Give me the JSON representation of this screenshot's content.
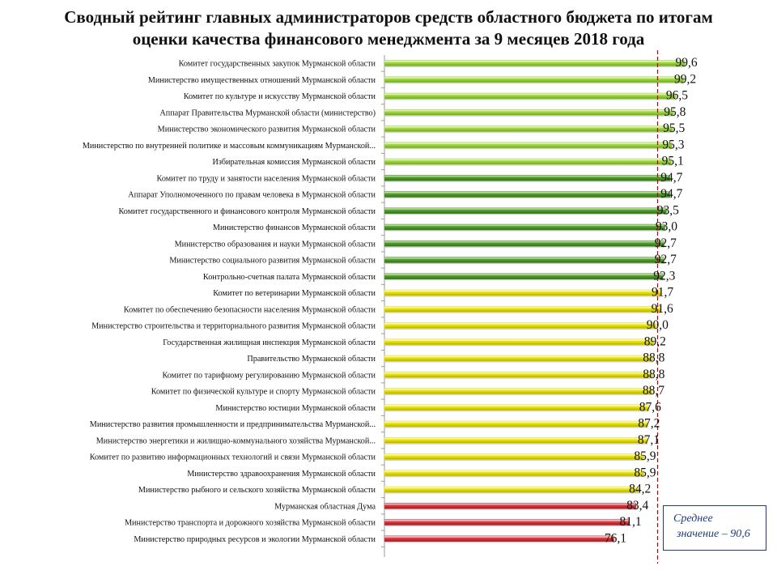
{
  "title_lines": [
    "Сводный рейтинг главных администраторов средств областного бюджета по итогам",
    "оценки качества финансового менеджмента за 9 месяцев 2018 года"
  ],
  "average_box": {
    "line1": "Среднее",
    "line2": "значение – 90,6"
  },
  "colors": {
    "light_green": "#9bd33a",
    "dark_green": "#4f9a2a",
    "yellow": "#e5e000",
    "red": "#d7343c",
    "average_line": "#c00000"
  },
  "chart_data": {
    "type": "bar",
    "orientation": "horizontal",
    "average": 90.6,
    "xlim": [
      0,
      100
    ],
    "categories": [
      "Комитет государственных закупок Мурманской области",
      "Министерство имущественных отношений Мурманской области",
      "Комитет по культуре и искусству Мурманской области",
      "Аппарат Правительства Мурманской области (министерство)",
      "Министерство экономического развития Мурманской области",
      "Министерство по внутренней политике и массовым коммуникациям Мурманской...",
      "Избирательная комиссия Мурманской области",
      "Комитет по труду и занятости населения Мурманской области",
      "Аппарат Уполномоченного по правам человека в Мурманской области",
      "Комитет государственного и финансового контроля Мурманской области",
      "Министерство финансов Мурманской области",
      "Министерство образования и науки Мурманской области",
      "Министерство социального развития Мурманской области",
      "Контрольно-счетная палата Мурманской области",
      "Комитет по ветеринарии Мурманской области",
      "Комитет по обеспечению безопасности населения Мурманской области",
      "Министерство строительства и территориального развития Мурманской области",
      "Государственная жилищная инспекция Мурманской области",
      "Правительство Мурманской области",
      "Комитет по тарифному регулированию Мурманской области",
      "Комитет по физической культуре и спорту Мурманской области",
      "Министерство юстиции Мурманской области",
      "Министерство развития промышленности и предпринимательства Мурманской...",
      "Министерство энергетики и жилищно-коммунального хозяйства Мурманской...",
      "Комитет по развитию информационных технологий и связи Мурманской области",
      "Министерство здравоохранения Мурманской области",
      "Министерство рыбного и сельского хозяйства Мурманской области",
      "Мурманская областная Дума",
      "Министерство транспорта и дорожного хозяйства Мурманской области",
      "Министерство природных ресурсов и экологии Мурманской области"
    ],
    "values": [
      99.6,
      99.2,
      96.5,
      95.8,
      95.5,
      95.3,
      95.1,
      94.7,
      94.7,
      93.5,
      93.0,
      92.7,
      92.7,
      92.3,
      91.7,
      91.6,
      90.0,
      89.2,
      88.8,
      88.8,
      88.7,
      87.6,
      87.2,
      87.1,
      85.9,
      85.9,
      84.2,
      83.4,
      81.1,
      76.1
    ],
    "value_labels": [
      "99,6",
      "99,2",
      "96,5",
      "95,8",
      "95,5",
      "95,3",
      "95,1",
      "94,7",
      "94,7",
      "93,5",
      "93,0",
      "92,7",
      "92,7",
      "92,3",
      "91,7",
      "91,6",
      "90,0",
      "89,2",
      "88,8",
      "88,8",
      "88,7",
      "87,6",
      "87,2",
      "87,1",
      "85,9",
      "85,9",
      "84,2",
      "83,4",
      "81,1",
      "76,1"
    ],
    "color_groups": [
      "light_green",
      "light_green",
      "light_green",
      "light_green",
      "light_green",
      "light_green",
      "light_green",
      "dark_green",
      "dark_green",
      "dark_green",
      "dark_green",
      "dark_green",
      "dark_green",
      "dark_green",
      "yellow",
      "yellow",
      "yellow",
      "yellow",
      "yellow",
      "yellow",
      "yellow",
      "yellow",
      "yellow",
      "yellow",
      "yellow",
      "yellow",
      "yellow",
      "red",
      "red",
      "red"
    ]
  }
}
